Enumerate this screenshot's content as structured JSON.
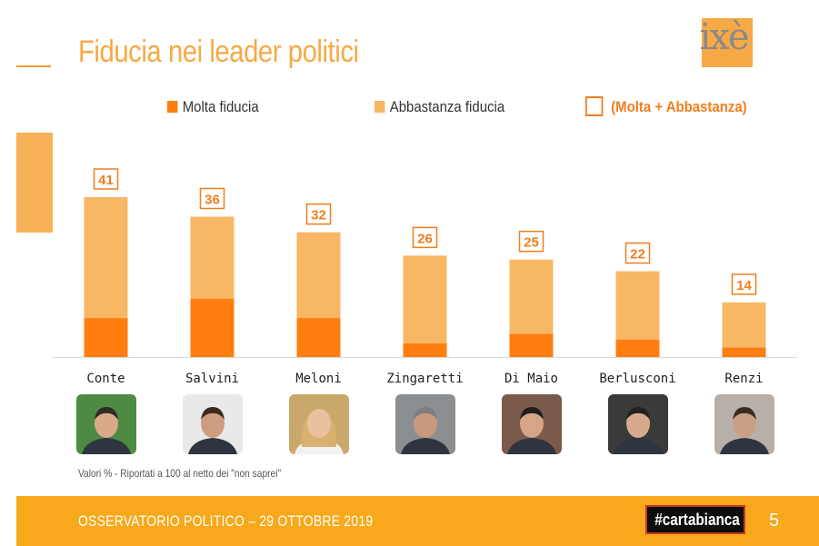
{
  "title": "Fiducia nei leader politici",
  "logo_text": "ixè",
  "legend": {
    "molta": "Molta fiducia",
    "abbastanza": "Abbastanza fiducia",
    "total": "(Molta + Abbastanza)"
  },
  "colors": {
    "molta": "#ff7e0f",
    "abbastanza": "#f7b764",
    "total_label": "#f07e1d",
    "footer": "#f7a81b"
  },
  "chart_data": {
    "type": "bar",
    "stacked": true,
    "categories": [
      "Conte",
      "Salvini",
      "Meloni",
      "Zingaretti",
      "Di Maio",
      "Berlusconi",
      "Renzi"
    ],
    "series": [
      {
        "name": "Molta fiducia",
        "values": [
          10,
          15,
          10,
          3.5,
          6,
          4.5,
          2.5
        ]
      },
      {
        "name": "Abbastanza fiducia",
        "values": [
          31,
          21,
          22,
          22.5,
          19,
          17.5,
          11.5
        ]
      }
    ],
    "totals": [
      41,
      36,
      32,
      26,
      25,
      22,
      14
    ],
    "ylim": [
      0,
      41
    ],
    "grid": false,
    "legend_position": "top"
  },
  "leaders": [
    {
      "photo_icon": "conte-portrait-icon"
    },
    {
      "photo_icon": "salvini-portrait-icon"
    },
    {
      "photo_icon": "meloni-portrait-icon"
    },
    {
      "photo_icon": "zingaretti-portrait-icon"
    },
    {
      "photo_icon": "dimaio-portrait-icon"
    },
    {
      "photo_icon": "berlusconi-portrait-icon"
    },
    {
      "photo_icon": "renzi-portrait-icon"
    }
  ],
  "note": "Valori % - Riportati a 100 al netto dei \"non saprei\"",
  "footer": {
    "text": "OSSERVATORIO POLITICO – 29 OTTOBRE 2019",
    "brand": "#cartabianca",
    "page_number": "5"
  }
}
